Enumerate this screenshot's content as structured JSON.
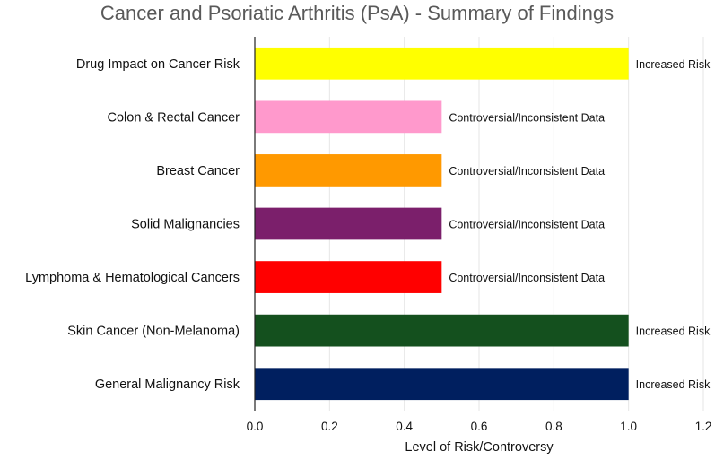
{
  "chart_data": {
    "type": "bar",
    "orientation": "horizontal",
    "title": "Cancer and Psoriatic Arthritis (PsA) - Summary of Findings",
    "xlabel": "Level of Risk/Controversy",
    "ylabel": "",
    "xlim": [
      0,
      1.2
    ],
    "xticks": [
      "0.0",
      "0.2",
      "0.4",
      "0.6",
      "0.8",
      "1.0",
      "1.2"
    ],
    "grid": true,
    "legend": "none",
    "categories": [
      "Drug Impact on Cancer Risk",
      "Colon & Rectal Cancer",
      "Breast Cancer",
      "Solid Malignancies",
      "Lymphoma & Hematological Cancers",
      "Skin Cancer (Non-Melanoma)",
      "General Malignancy Risk"
    ],
    "values": [
      1.0,
      0.5,
      0.5,
      0.5,
      0.5,
      1.0,
      1.0
    ],
    "data_labels": [
      "Increased Risk",
      "Controversial/Inconsistent Data",
      "Controversial/Inconsistent Data",
      "Controversial/Inconsistent Data",
      "Controversial/Inconsistent Data",
      "Increased Risk",
      "Increased Risk"
    ],
    "colors": [
      "#ffff00",
      "#ff99cc",
      "#ff9900",
      "#7b1f6b",
      "#ff0000",
      "#14501e",
      "#001f5f"
    ]
  }
}
